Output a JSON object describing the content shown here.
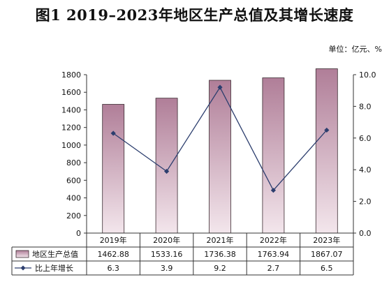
{
  "title": "图1  2019–2023年地区生产总值及其增长速度",
  "unit_label": "单位：亿元、%",
  "chart_data": {
    "type": "bar",
    "categories": [
      "2019年",
      "2020年",
      "2021年",
      "2022年",
      "2023年"
    ],
    "series": [
      {
        "name": "地区生产总值",
        "type": "bar",
        "axis": "left",
        "values": [
          1462.88,
          1533.16,
          1736.38,
          1763.94,
          1867.07
        ],
        "value_labels": [
          "1462.88",
          "1533.16",
          "1736.38",
          "1763.94",
          "1867.07"
        ]
      },
      {
        "name": "比上年增长",
        "type": "line",
        "axis": "right",
        "values": [
          6.3,
          3.9,
          9.2,
          2.7,
          6.5
        ],
        "value_labels": [
          "6.3",
          "3.9",
          "9.2",
          "2.7",
          "6.5"
        ]
      }
    ],
    "y_left": {
      "range": [
        0,
        1800
      ],
      "ticks": [
        "0",
        "200",
        "400",
        "600",
        "800",
        "1000",
        "1200",
        "1400",
        "1600",
        "1800"
      ]
    },
    "y_right": {
      "range": [
        0,
        10
      ],
      "ticks": [
        "0.0",
        "2.0",
        "4.0",
        "6.0",
        "8.0",
        "10.0"
      ]
    },
    "grid": false,
    "legend": "data-table-below",
    "colors": {
      "bar_top": "#b07e98",
      "bar_bottom": "#f3e6ec",
      "bar_stroke": "#3a2a30",
      "line": "#2c3e6e"
    }
  }
}
